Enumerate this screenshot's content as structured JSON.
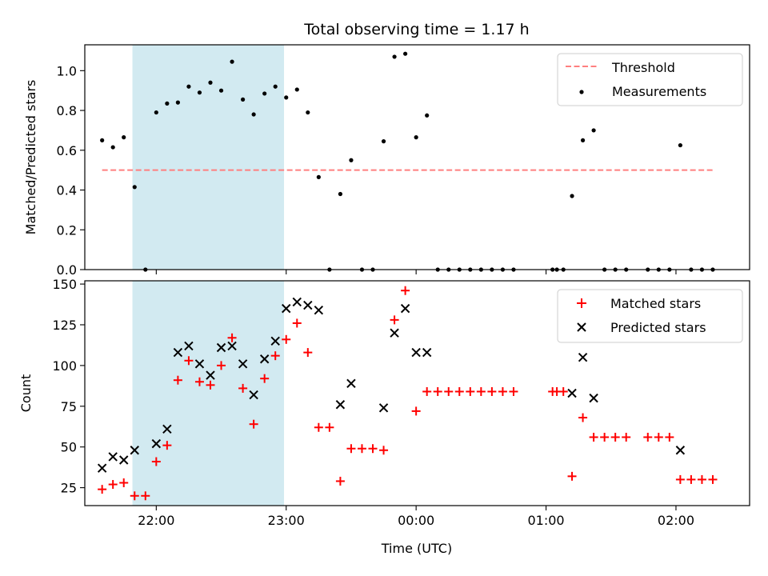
{
  "chart_data": [
    {
      "type": "scatter",
      "title": "Total observing time = 1.17 h",
      "xlabel": "",
      "ylabel": "Matched/Predicted stars",
      "ylim": [
        0,
        1.13
      ],
      "yticks": [
        "0.0",
        "0.2",
        "0.4",
        "0.6",
        "0.8",
        "1.0"
      ],
      "xlim": [
        "21:27",
        "02:34"
      ],
      "xticks": [
        "22:00",
        "23:00",
        "00:00",
        "01:00",
        "02:00"
      ],
      "highlight": {
        "start": "21:49",
        "end": "22:59",
        "color": "#add8e6"
      },
      "legend_position": "top-right",
      "threshold": {
        "name": "Threshold",
        "value": 0.5,
        "x_start": "21:35",
        "x_end": "02:18",
        "color": "#ff7f7f"
      },
      "series": [
        {
          "name": "Measurements",
          "color": "#000000",
          "points": [
            [
              "21:35",
              0.65
            ],
            [
              "21:40",
              0.615
            ],
            [
              "21:45",
              0.665
            ],
            [
              "21:50",
              0.415
            ],
            [
              "21:55",
              0.0
            ],
            [
              "22:00",
              0.79
            ],
            [
              "22:05",
              0.835
            ],
            [
              "22:10",
              0.84
            ],
            [
              "22:15",
              0.92
            ],
            [
              "22:20",
              0.89
            ],
            [
              "22:25",
              0.94
            ],
            [
              "22:30",
              0.9
            ],
            [
              "22:35",
              1.045
            ],
            [
              "22:40",
              0.855
            ],
            [
              "22:45",
              0.78
            ],
            [
              "22:50",
              0.885
            ],
            [
              "22:55",
              0.92
            ],
            [
              "23:00",
              0.865
            ],
            [
              "23:05",
              0.905
            ],
            [
              "23:10",
              0.79
            ],
            [
              "23:15",
              0.465
            ],
            [
              "23:20",
              0.0
            ],
            [
              "23:25",
              0.38
            ],
            [
              "23:30",
              0.55
            ],
            [
              "23:35",
              0.0
            ],
            [
              "23:40",
              0.0
            ],
            [
              "23:45",
              0.645
            ],
            [
              "23:50",
              1.07
            ],
            [
              "23:55",
              1.085
            ],
            [
              "00:00",
              0.665
            ],
            [
              "00:05",
              0.775
            ],
            [
              "00:10",
              0.0
            ],
            [
              "00:15",
              0.0
            ],
            [
              "00:20",
              0.0
            ],
            [
              "00:25",
              0.0
            ],
            [
              "00:30",
              0.0
            ],
            [
              "00:35",
              0.0
            ],
            [
              "00:40",
              0.0
            ],
            [
              "00:45",
              0.0
            ],
            [
              "01:03",
              0.0
            ],
            [
              "01:05",
              0.0
            ],
            [
              "01:08",
              0.0
            ],
            [
              "01:12",
              0.37
            ],
            [
              "01:17",
              0.65
            ],
            [
              "01:22",
              0.7
            ],
            [
              "01:27",
              0.0
            ],
            [
              "01:32",
              0.0
            ],
            [
              "01:37",
              0.0
            ],
            [
              "01:47",
              0.0
            ],
            [
              "01:52",
              0.0
            ],
            [
              "01:57",
              0.0
            ],
            [
              "02:02",
              0.625
            ],
            [
              "02:07",
              0.0
            ],
            [
              "02:12",
              0.0
            ],
            [
              "02:17",
              0.0
            ]
          ]
        }
      ]
    },
    {
      "type": "scatter",
      "title": "",
      "xlabel": "Time (UTC)",
      "ylabel": "Count",
      "ylim": [
        14,
        152
      ],
      "yticks": [
        "25",
        "50",
        "75",
        "100",
        "125",
        "150"
      ],
      "xlim": [
        "21:27",
        "02:34"
      ],
      "xticks": [
        "22:00",
        "23:00",
        "00:00",
        "01:00",
        "02:00"
      ],
      "highlight": {
        "start": "21:49",
        "end": "22:59",
        "color": "#add8e6"
      },
      "legend_position": "top-right",
      "series": [
        {
          "name": "Matched stars",
          "marker": "plus",
          "color": "#ff0000",
          "points": [
            [
              "21:35",
              24
            ],
            [
              "21:40",
              27
            ],
            [
              "21:45",
              28
            ],
            [
              "21:50",
              20
            ],
            [
              "21:55",
              20
            ],
            [
              "22:00",
              41
            ],
            [
              "22:05",
              51
            ],
            [
              "22:10",
              91
            ],
            [
              "22:15",
              103
            ],
            [
              "22:20",
              90
            ],
            [
              "22:25",
              88
            ],
            [
              "22:30",
              100
            ],
            [
              "22:35",
              117
            ],
            [
              "22:40",
              86
            ],
            [
              "22:45",
              64
            ],
            [
              "22:50",
              92
            ],
            [
              "22:55",
              106
            ],
            [
              "23:00",
              116
            ],
            [
              "23:05",
              126
            ],
            [
              "23:10",
              108
            ],
            [
              "23:15",
              62
            ],
            [
              "23:20",
              62
            ],
            [
              "23:25",
              29
            ],
            [
              "23:30",
              49
            ],
            [
              "23:35",
              49
            ],
            [
              "23:40",
              49
            ],
            [
              "23:45",
              48
            ],
            [
              "23:50",
              128
            ],
            [
              "23:55",
              146
            ],
            [
              "00:00",
              72
            ],
            [
              "00:05",
              84
            ],
            [
              "00:10",
              84
            ],
            [
              "00:15",
              84
            ],
            [
              "00:20",
              84
            ],
            [
              "00:25",
              84
            ],
            [
              "00:30",
              84
            ],
            [
              "00:35",
              84
            ],
            [
              "00:40",
              84
            ],
            [
              "00:45",
              84
            ],
            [
              "01:03",
              84
            ],
            [
              "01:05",
              84
            ],
            [
              "01:08",
              84
            ],
            [
              "01:12",
              32
            ],
            [
              "01:17",
              68
            ],
            [
              "01:22",
              56
            ],
            [
              "01:27",
              56
            ],
            [
              "01:32",
              56
            ],
            [
              "01:37",
              56
            ],
            [
              "01:47",
              56
            ],
            [
              "01:52",
              56
            ],
            [
              "01:57",
              56
            ],
            [
              "02:02",
              30
            ],
            [
              "02:07",
              30
            ],
            [
              "02:12",
              30
            ],
            [
              "02:17",
              30
            ]
          ]
        },
        {
          "name": "Predicted stars",
          "marker": "x",
          "color": "#000000",
          "points": [
            [
              "21:35",
              37
            ],
            [
              "21:40",
              44
            ],
            [
              "21:45",
              42
            ],
            [
              "21:50",
              48
            ],
            [
              "22:00",
              52
            ],
            [
              "22:05",
              61
            ],
            [
              "22:10",
              108
            ],
            [
              "22:15",
              112
            ],
            [
              "22:20",
              101
            ],
            [
              "22:25",
              94
            ],
            [
              "22:30",
              111
            ],
            [
              "22:35",
              112
            ],
            [
              "22:40",
              101
            ],
            [
              "22:45",
              82
            ],
            [
              "22:50",
              104
            ],
            [
              "22:55",
              115
            ],
            [
              "23:00",
              135
            ],
            [
              "23:05",
              139
            ],
            [
              "23:10",
              137
            ],
            [
              "23:15",
              134
            ],
            [
              "23:25",
              76
            ],
            [
              "23:30",
              89
            ],
            [
              "23:45",
              74
            ],
            [
              "23:50",
              120
            ],
            [
              "23:55",
              135
            ],
            [
              "00:00",
              108
            ],
            [
              "00:05",
              108
            ],
            [
              "01:12",
              83
            ],
            [
              "01:17",
              105
            ],
            [
              "01:22",
              80
            ],
            [
              "02:02",
              48
            ]
          ]
        }
      ]
    }
  ]
}
